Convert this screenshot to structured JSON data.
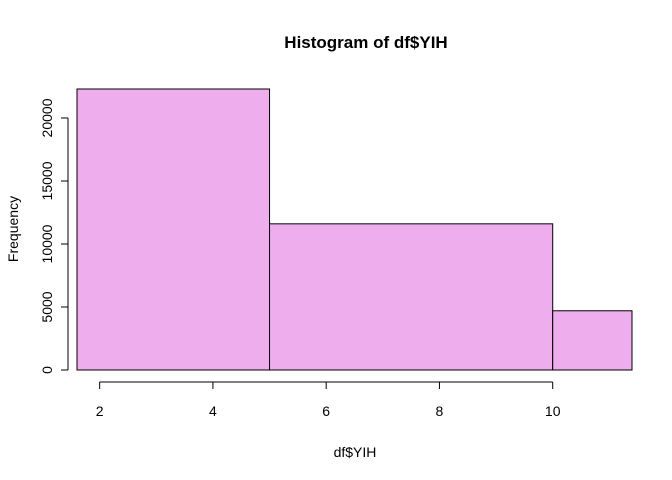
{
  "chart_data": {
    "type": "bar",
    "subtype": "histogram",
    "title": "Histogram of df$YIH",
    "xlabel": "df$YIH",
    "ylabel": "Frequency",
    "bins": [
      {
        "start": 1.6,
        "end": 5,
        "value": 22300
      },
      {
        "start": 5,
        "end": 10,
        "value": 11600
      },
      {
        "start": 10,
        "end": 11.4,
        "value": 4700
      }
    ],
    "xlim": [
      1.6,
      11.4
    ],
    "ylim": [
      0,
      22300
    ],
    "x_ticks": [
      2,
      4,
      6,
      8,
      10
    ],
    "x_tick_labels": [
      "2",
      "4",
      "6",
      "8",
      "10"
    ],
    "y_ticks": [
      0,
      5000,
      10000,
      15000,
      20000
    ],
    "y_tick_labels": [
      "0",
      "5000",
      "10000",
      "15000",
      "20000"
    ],
    "bar_color": "#eeaeee",
    "bar_border_color": "#000000",
    "grid": false
  }
}
